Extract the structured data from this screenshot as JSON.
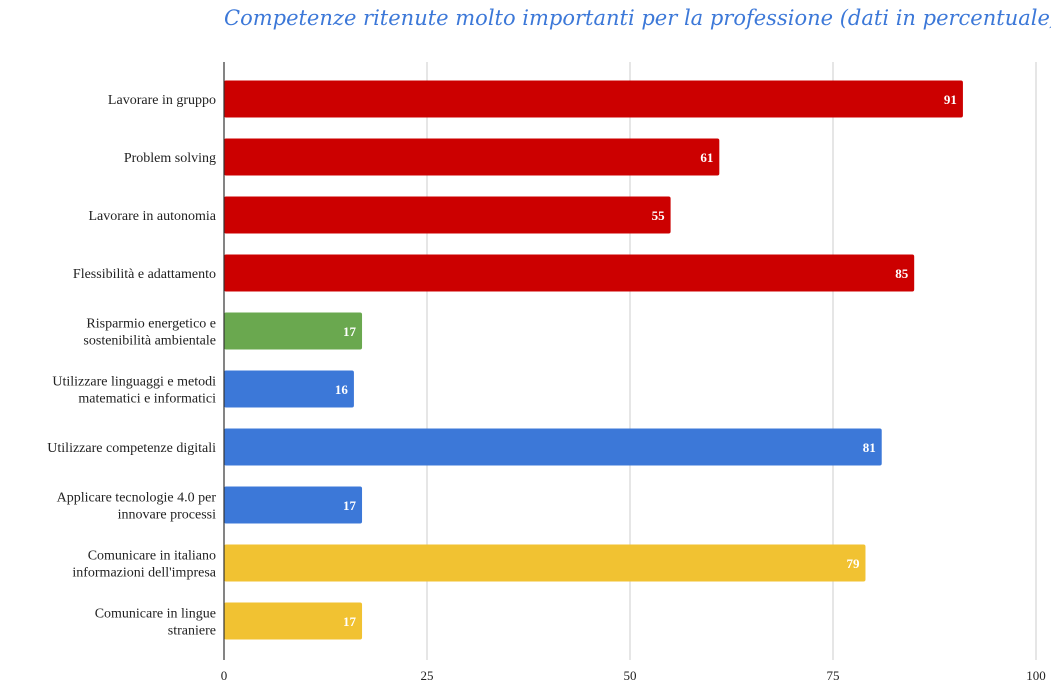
{
  "chart_data": {
    "type": "bar",
    "orientation": "horizontal",
    "title": "Competenze ritenute molto importanti per la professione (dati in percentuale)",
    "categories": [
      "Lavorare in gruppo",
      "Problem solving",
      "Lavorare in autonomia",
      "Flessibilità e adattamento",
      "Risparmio energetico e sostenibilità ambientale",
      "Utilizzare linguaggi e metodi matematici e informatici",
      "Utilizzare competenze digitali",
      "Applicare tecnologie 4.0 per innovare processi",
      "Comunicare in italiano informazioni dell'impresa",
      "Comunicare in lingue straniere"
    ],
    "category_lines": [
      [
        "Lavorare in gruppo"
      ],
      [
        "Problem solving"
      ],
      [
        "Lavorare in autonomia"
      ],
      [
        "Flessibilità e adattamento"
      ],
      [
        "Risparmio energetico e",
        "sostenibilità ambientale"
      ],
      [
        "Utilizzare linguaggi e metodi",
        "matematici e informatici"
      ],
      [
        "Utilizzare competenze digitali"
      ],
      [
        "Applicare tecnologie 4.0 per",
        "innovare processi"
      ],
      [
        "Comunicare in italiano",
        "informazioni dell'impresa"
      ],
      [
        "Comunicare in lingue",
        "straniere"
      ]
    ],
    "values": [
      91,
      61,
      55,
      85,
      17,
      16,
      81,
      17,
      79,
      17
    ],
    "bar_colors": [
      "#cc0000",
      "#cc0000",
      "#cc0000",
      "#cc0000",
      "#6aa84f",
      "#3c78d8",
      "#3c78d8",
      "#3c78d8",
      "#f1c232",
      "#f1c232"
    ],
    "xlim": [
      0,
      100
    ],
    "xticks": [
      0,
      25,
      50,
      75,
      100
    ],
    "grid": true,
    "legend": "none",
    "title_color": "#3c78d8",
    "grid_color": "#cccccc",
    "axis_color": "#333333"
  }
}
